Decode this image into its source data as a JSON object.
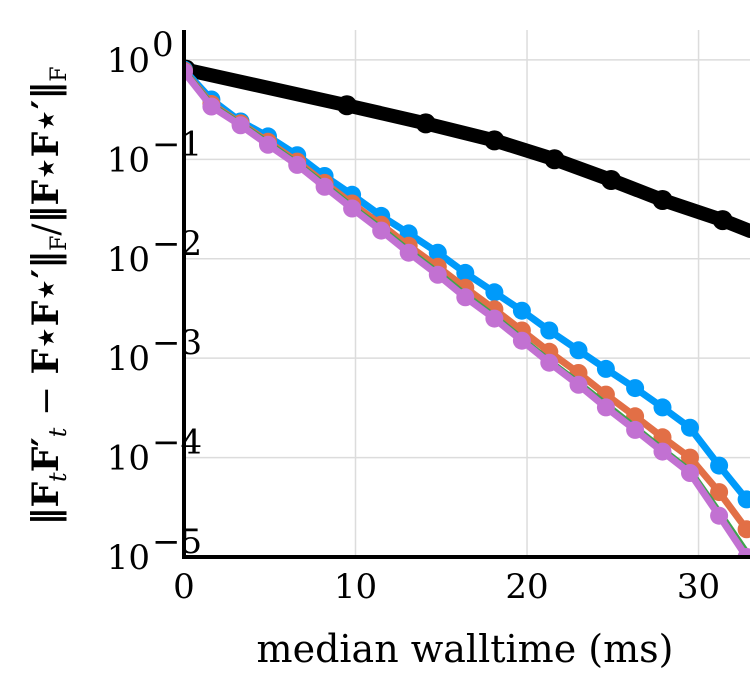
{
  "chart_data": {
    "type": "line",
    "xlabel": "median walltime (ms)",
    "ylabel": "‖F_t F′_t − F⋆F⋆′‖_F / ‖F⋆F⋆′‖_F",
    "yscale": "log",
    "xlim": [
      0,
      33
    ],
    "ylim": [
      1e-05,
      2
    ],
    "x_ticks": [
      0,
      10,
      20,
      30
    ],
    "x_tick_labels": [
      "0",
      "10",
      "20",
      "30"
    ],
    "y_ticks": [
      1,
      0.1,
      0.01,
      0.001,
      0.0001,
      1e-05
    ],
    "y_tick_bases": [
      "10",
      "10",
      "10",
      "10",
      "10",
      "10"
    ],
    "y_tick_exponents": [
      "0",
      "−1",
      "−2",
      "−3",
      "−4",
      "−5"
    ],
    "grid": true,
    "series": [
      {
        "name": "black",
        "color": "#000000",
        "x": [
          0.1,
          9.5,
          14.1,
          18.1,
          21.6,
          24.9,
          27.9,
          31.4,
          33
        ],
        "y": [
          0.8,
          0.35,
          0.23,
          0.155,
          0.1,
          0.062,
          0.039,
          0.0245,
          0.019
        ]
      },
      {
        "name": "blue",
        "color": "#009AFA",
        "x": [
          0,
          1.6,
          3.3,
          4.9,
          6.6,
          8.2,
          9.8,
          11.5,
          13.1,
          14.8,
          16.4,
          18.1,
          19.7,
          21.3,
          23.0,
          24.6,
          26.3,
          27.9,
          29.5,
          31.2,
          32.8
        ],
        "y": [
          0.8,
          0.4,
          0.24,
          0.17,
          0.11,
          0.068,
          0.044,
          0.027,
          0.018,
          0.0115,
          0.0072,
          0.0046,
          0.003,
          0.0019,
          0.0012,
          0.00078,
          0.0005,
          0.00032,
          0.0002,
          8.3e-05,
          3.8e-05
        ]
      },
      {
        "name": "orange",
        "color": "#E26F46",
        "x": [
          0,
          1.6,
          3.3,
          4.9,
          6.6,
          8.2,
          9.8,
          11.5,
          13.1,
          14.8,
          16.4,
          18.1,
          19.7,
          21.3,
          23.0,
          24.6,
          26.3,
          27.9,
          29.5,
          31.2,
          32.8
        ],
        "y": [
          0.78,
          0.36,
          0.23,
          0.15,
          0.095,
          0.058,
          0.036,
          0.022,
          0.0135,
          0.0083,
          0.0051,
          0.0031,
          0.0019,
          0.00116,
          0.00071,
          0.00043,
          0.00026,
          0.00016,
          0.0001,
          4.5e-05,
          1.9e-05
        ]
      },
      {
        "name": "green",
        "color": "#3EA44E",
        "x": [
          0,
          1.6,
          3.3,
          4.9,
          6.6,
          8.2,
          9.8,
          11.5,
          13.1,
          14.8,
          16.4,
          18.1,
          19.7,
          21.3,
          23.0,
          24.6,
          26.3,
          27.9,
          29.5,
          31.2,
          32.8
        ],
        "y": [
          0.77,
          0.35,
          0.225,
          0.145,
          0.09,
          0.055,
          0.033,
          0.02,
          0.012,
          0.0072,
          0.0043,
          0.0026,
          0.00155,
          0.00093,
          0.00056,
          0.00034,
          0.0002,
          0.00012,
          7.3e-05,
          2.8e-05,
          1.1e-05
        ]
      },
      {
        "name": "purple",
        "color": "#C271D2",
        "x": [
          0,
          1.6,
          3.3,
          4.9,
          6.6,
          8.2,
          9.8,
          11.5,
          13.1,
          14.8,
          16.4,
          18.1,
          19.7,
          21.3,
          23.0,
          24.6,
          26.3,
          27.9,
          29.5,
          31.2,
          32.8
        ],
        "y": [
          0.76,
          0.34,
          0.22,
          0.14,
          0.088,
          0.053,
          0.032,
          0.0192,
          0.0115,
          0.0069,
          0.0041,
          0.0025,
          0.0015,
          0.0009,
          0.00054,
          0.00032,
          0.00019,
          0.000115,
          7e-05,
          2.6e-05,
          1e-05
        ]
      }
    ]
  }
}
